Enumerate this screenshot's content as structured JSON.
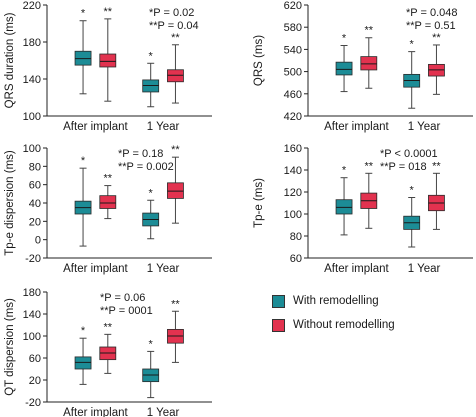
{
  "colors": {
    "with": "#1c8c96",
    "without": "#e2324f",
    "axis": "#222222",
    "whisker": "#444444"
  },
  "legend": {
    "with_label": "With remodelling",
    "without_label": "Without remodelling"
  },
  "chart_data": [
    {
      "type": "box",
      "ylabel": "QRS duration (ms)",
      "ylim": [
        100,
        220
      ],
      "yticks": [
        100,
        140,
        180,
        220
      ],
      "categories": [
        "After implant",
        "1 Year"
      ],
      "annotation": [
        "*P = 0.02",
        "**P = 0.04"
      ],
      "series": [
        {
          "name": "With remodelling",
          "boxes": [
            {
              "min": 124,
              "q1": 155,
              "median": 162,
              "q3": 170,
              "max": 203,
              "marker": "*"
            },
            {
              "min": 110,
              "q1": 126,
              "median": 133,
              "q3": 139,
              "max": 157,
              "marker": "*"
            }
          ]
        },
        {
          "name": "Without remodelling",
          "boxes": [
            {
              "min": 116,
              "q1": 153,
              "median": 159,
              "q3": 167,
              "max": 205,
              "marker": "**"
            },
            {
              "min": 114,
              "q1": 137,
              "median": 144,
              "q3": 150,
              "max": 177,
              "marker": "**"
            }
          ]
        }
      ]
    },
    {
      "type": "box",
      "ylabel": "QRS (ms)",
      "ylim": [
        420,
        620
      ],
      "yticks": [
        420,
        460,
        500,
        540,
        580,
        620
      ],
      "categories": [
        "After implant",
        "1 Year"
      ],
      "annotation": [
        "*P = 0.048",
        "**P = 0.51"
      ],
      "series": [
        {
          "name": "With remodelling",
          "boxes": [
            {
              "min": 464,
              "q1": 494,
              "median": 504,
              "q3": 517,
              "max": 547,
              "marker": "*"
            },
            {
              "min": 434,
              "q1": 472,
              "median": 484,
              "q3": 495,
              "max": 536,
              "marker": "*"
            }
          ]
        },
        {
          "name": "Without remodelling",
          "boxes": [
            {
              "min": 470,
              "q1": 503,
              "median": 514,
              "q3": 527,
              "max": 561,
              "marker": "**"
            },
            {
              "min": 459,
              "q1": 492,
              "median": 503,
              "q3": 513,
              "max": 548,
              "marker": "**"
            }
          ]
        }
      ]
    },
    {
      "type": "box",
      "ylabel": "Tp-e dispersion (ms)",
      "ylim": [
        -20,
        100
      ],
      "yticks": [
        -20,
        0,
        20,
        40,
        60,
        80,
        100
      ],
      "categories": [
        "After implant",
        "1 Year"
      ],
      "annotation": [
        "*P = 0.18",
        "**P = 0.002"
      ],
      "series": [
        {
          "name": "With remodelling",
          "boxes": [
            {
              "min": -7,
              "q1": 28,
              "median": 35,
              "q3": 42,
              "max": 78,
              "marker": "*"
            },
            {
              "min": 1,
              "q1": 15,
              "median": 22,
              "q3": 29,
              "max": 43,
              "marker": "*"
            }
          ]
        },
        {
          "name": "Without remodelling",
          "boxes": [
            {
              "min": 23,
              "q1": 34,
              "median": 40,
              "q3": 48,
              "max": 59,
              "marker": "**"
            },
            {
              "min": 18,
              "q1": 45,
              "median": 53,
              "q3": 62,
              "max": 90,
              "marker": "**"
            }
          ]
        }
      ]
    },
    {
      "type": "box",
      "ylabel": "Tp-e (ms)",
      "ylim": [
        60,
        160
      ],
      "yticks": [
        60,
        80,
        100,
        120,
        140,
        160
      ],
      "categories": [
        "After implant",
        "1 Year"
      ],
      "annotation": [
        "*P < 0.0001",
        "**P = 018"
      ],
      "series": [
        {
          "name": "With remodelling",
          "boxes": [
            {
              "min": 81,
              "q1": 100,
              "median": 106,
              "q3": 113,
              "max": 133,
              "marker": "*"
            },
            {
              "min": 70,
              "q1": 86,
              "median": 92,
              "q3": 98,
              "max": 115,
              "marker": "*"
            }
          ]
        },
        {
          "name": "Without remodelling",
          "boxes": [
            {
              "min": 87,
              "q1": 105,
              "median": 112,
              "q3": 119,
              "max": 137,
              "marker": "**"
            },
            {
              "min": 86,
              "q1": 103,
              "median": 110,
              "q3": 117,
              "max": 137,
              "marker": "**"
            }
          ]
        }
      ]
    },
    {
      "type": "box",
      "ylabel": "QT dispersion (ms)",
      "ylim": [
        -20,
        180
      ],
      "yticks": [
        -20,
        20,
        60,
        100,
        140,
        180
      ],
      "categories": [
        "After implant",
        "1 Year"
      ],
      "annotation": [
        "*P = 0.06",
        "**P = 0001"
      ],
      "series": [
        {
          "name": "With remodelling",
          "boxes": [
            {
              "min": 12,
              "q1": 40,
              "median": 52,
              "q3": 62,
              "max": 96,
              "marker": "*"
            },
            {
              "min": -12,
              "q1": 17,
              "median": 29,
              "q3": 40,
              "max": 72,
              "marker": "*"
            }
          ]
        },
        {
          "name": "Without remodelling",
          "boxes": [
            {
              "min": 32,
              "q1": 57,
              "median": 69,
              "q3": 80,
              "max": 103,
              "marker": "**"
            },
            {
              "min": 52,
              "q1": 87,
              "median": 100,
              "q3": 112,
              "max": 145,
              "marker": "**"
            }
          ]
        }
      ]
    }
  ]
}
